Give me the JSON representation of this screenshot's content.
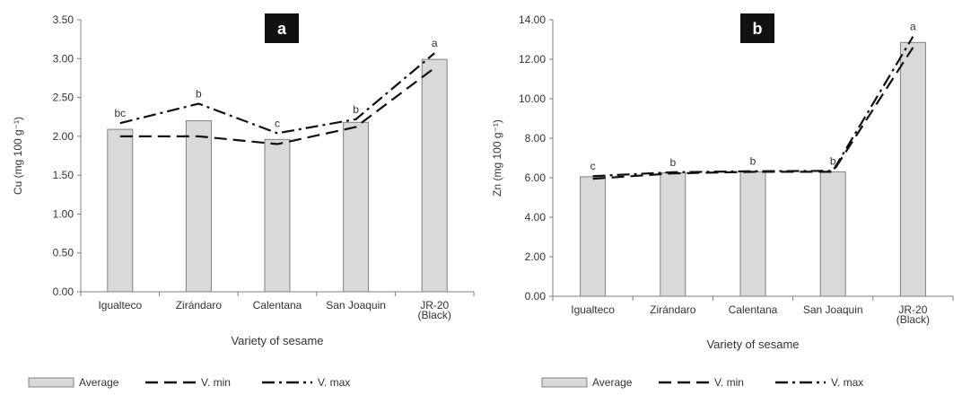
{
  "chart_data": [
    {
      "type": "bar",
      "panel_label": "a",
      "categories": [
        "Igualteco",
        "Zirándaro",
        "Calentana",
        "San Joaquin",
        "JR-20\n(Black)"
      ],
      "series": [
        {
          "name": "Average",
          "type": "bar",
          "values": [
            2.09,
            2.2,
            1.96,
            2.18,
            2.99
          ]
        },
        {
          "name": "V. min",
          "type": "line",
          "style": "dashed",
          "values": [
            2.0,
            2.0,
            1.9,
            2.12,
            2.88
          ]
        },
        {
          "name": "V. max",
          "type": "line",
          "style": "dash-dot",
          "values": [
            2.17,
            2.42,
            2.04,
            2.22,
            3.07
          ]
        }
      ],
      "letters": [
        "bc",
        "b",
        "c",
        "b",
        "a"
      ],
      "xlabel": "Variety of sesame",
      "ylabel": "Cu (mg 100 g⁻¹)",
      "ylim": [
        0,
        3.5
      ],
      "yticks": [
        "0.00",
        "0.50",
        "1.00",
        "1.50",
        "2.00",
        "2.50",
        "3.00",
        "3.50"
      ],
      "legend_position": "bottom",
      "grid": false
    },
    {
      "type": "bar",
      "panel_label": "b",
      "categories": [
        "Igualteco",
        "Zirándaro",
        "Calentana",
        "San Joaquin",
        "JR-20\n(Black)"
      ],
      "series": [
        {
          "name": "Average",
          "type": "bar",
          "values": [
            6.05,
            6.25,
            6.3,
            6.3,
            12.85
          ]
        },
        {
          "name": "V. min",
          "type": "line",
          "style": "dashed",
          "values": [
            5.95,
            6.22,
            6.3,
            6.3,
            12.6
          ]
        },
        {
          "name": "V. max",
          "type": "line",
          "style": "dash-dot",
          "values": [
            6.08,
            6.28,
            6.33,
            6.35,
            13.15
          ]
        }
      ],
      "letters": [
        "c",
        "b",
        "b",
        "b",
        "a"
      ],
      "xlabel": "Variety of sesame",
      "ylabel": "Zn (mg 100 g⁻¹)",
      "ylim": [
        0,
        14
      ],
      "yticks": [
        "0.00",
        "2.00",
        "4.00",
        "6.00",
        "8.00",
        "10.00",
        "12.00",
        "14.00"
      ],
      "legend_position": "bottom",
      "grid": false
    }
  ],
  "colors": {
    "bar_fill": "#d9d9d9",
    "bar_stroke": "#808080",
    "line": "#111111",
    "label_box": "#111111",
    "label_text": "#ffffff",
    "text": "#333333"
  }
}
